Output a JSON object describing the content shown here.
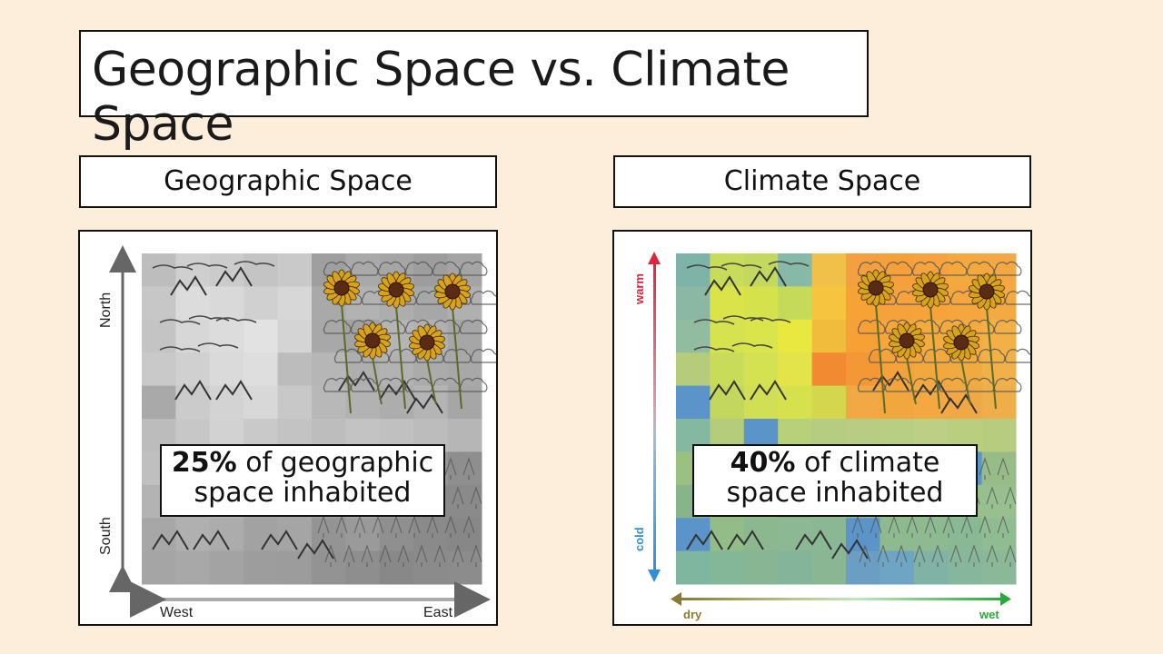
{
  "title": "Geographic Space vs. Climate Space",
  "geo_panel": {
    "heading": "Geographic Space",
    "percent": "25%",
    "caption_rest_line1": " of geographic",
    "caption_line2": "space inhabited",
    "axis_north": "North",
    "axis_south": "South",
    "axis_west": "West",
    "axis_east": "East"
  },
  "climate_panel": {
    "heading": "Climate Space",
    "percent": "40%",
    "caption_rest_line1": " of climate",
    "caption_line2": "space inhabited",
    "axis_warm": "warm",
    "axis_cold": "cold",
    "axis_dry": "dry",
    "axis_wet": "wet"
  },
  "colors": {
    "background": "#fdeedb",
    "warm": "#e0243c",
    "cold": "#2f8fd8",
    "dry": "#8a7a30",
    "wet": "#2aa83a"
  },
  "icons": [
    "sunflower-icon",
    "mountain-icon",
    "tree-icon",
    "cloud-shrub-icon"
  ]
}
